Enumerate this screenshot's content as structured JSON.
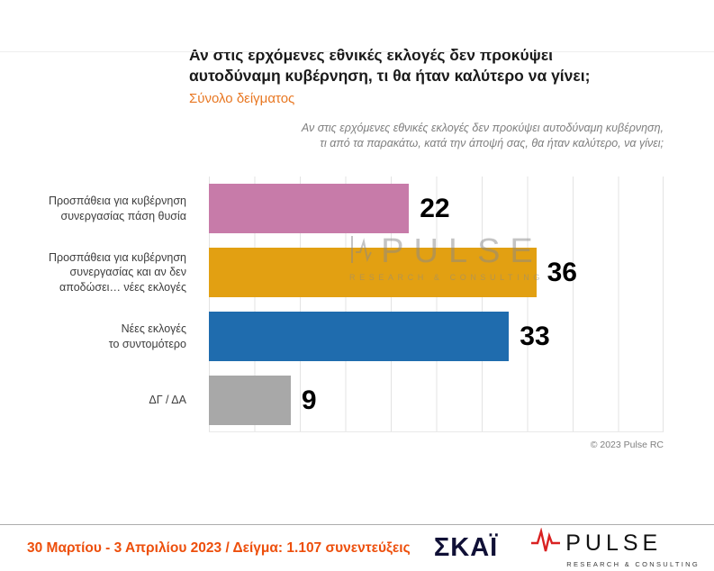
{
  "header": {
    "title": "Αν στις ερχόμενες εθνικές εκλογές δεν προκύψει\nαυτοδύναμη κυβέρνηση, τι θα ήταν καλύτερο να γίνει;",
    "subtitle": "Σύνολο δείγματος",
    "note": "Αν στις ερχόμενες εθνικές εκλογές δεν προκύψει αυτοδύναμη κυβέρνηση,\nτι από τα παρακάτω, κατά την άποψή σας, θα ήταν καλύτερο, να γίνει;"
  },
  "chart_data": {
    "type": "bar",
    "orientation": "horizontal",
    "title": "Αν στις ερχόμενες εθνικές εκλογές δεν προκύψει αυτοδύναμη κυβέρνηση, τι θα ήταν καλύτερο να γίνει;",
    "subtitle": "Σύνολο δείγματος",
    "categories": [
      "Προσπάθεια για κυβέρνηση\nσυνεργασίας πάση θυσία",
      "Προσπάθεια για κυβέρνηση\nσυνεργασίας και αν δεν\nαποδώσει… νέες εκλογές",
      "Νέες εκλογές\nτο συντομότερο",
      "ΔΓ / ΔΑ"
    ],
    "values": [
      22,
      36,
      33,
      9
    ],
    "bar_colors": [
      "#c77ba9",
      "#e2a012",
      "#1f6cae",
      "#a8a8a8"
    ],
    "xlim": [
      0,
      50
    ],
    "grid": true,
    "gridline_step": 5,
    "value_label_color": "#000000"
  },
  "watermark": {
    "name": "PULSE",
    "tagline": "RESEARCH & CONSULTING"
  },
  "copyright": "© 2023 Pulse RC",
  "footer": {
    "survey_info": "30 Μαρτίου - 3  Απριλίου  2023  /  Δείγμα:  1.107 συνεντεύξεις",
    "accent_color": "#ed4f0c",
    "skai_logo_text": "ΣΚΑΪ",
    "pulse_logo_text": "PULSE",
    "pulse_logo_tagline": "RESEARCH & CONSULTING"
  }
}
